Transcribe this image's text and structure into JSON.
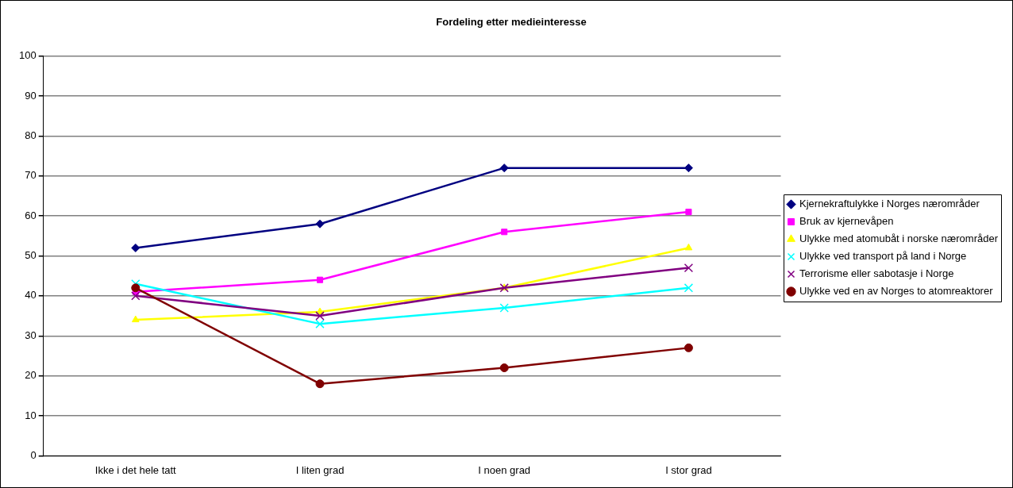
{
  "chart_data": {
    "type": "line",
    "title": "Fordeling etter medieinteresse",
    "categories": [
      "Ikke i det hele tatt",
      "I liten grad",
      "I noen grad",
      "I stor grad"
    ],
    "series": [
      {
        "name": "Kjernekraftulykke i Norges nærområder",
        "color": "#000080",
        "marker": "diamond",
        "values": [
          52,
          58,
          72,
          72
        ]
      },
      {
        "name": "Bruk av kjernevåpen",
        "color": "#ff00ff",
        "marker": "square",
        "values": [
          41,
          44,
          56,
          61
        ]
      },
      {
        "name": "Ulykke med atomubåt i norske nærområder",
        "color": "#ffff00",
        "marker": "triangle",
        "values": [
          34,
          36,
          42,
          52
        ]
      },
      {
        "name": "Ulykke ved transport på land i Norge",
        "color": "#00ffff",
        "marker": "cross",
        "values": [
          43,
          33,
          37,
          42
        ]
      },
      {
        "name": "Terrorisme eller sabotasje i Norge",
        "color": "#800080",
        "marker": "cross",
        "values": [
          40,
          35,
          42,
          47
        ]
      },
      {
        "name": "Ulykke ved en av Norges to atomreaktorer",
        "color": "#800000",
        "marker": "circle",
        "values": [
          42,
          18,
          22,
          27
        ]
      }
    ],
    "ylim": [
      0,
      100
    ],
    "yticks": [
      0,
      10,
      20,
      30,
      40,
      50,
      60,
      70,
      80,
      90,
      100
    ],
    "grid": "y",
    "legend": "right",
    "line_style": "solid"
  }
}
